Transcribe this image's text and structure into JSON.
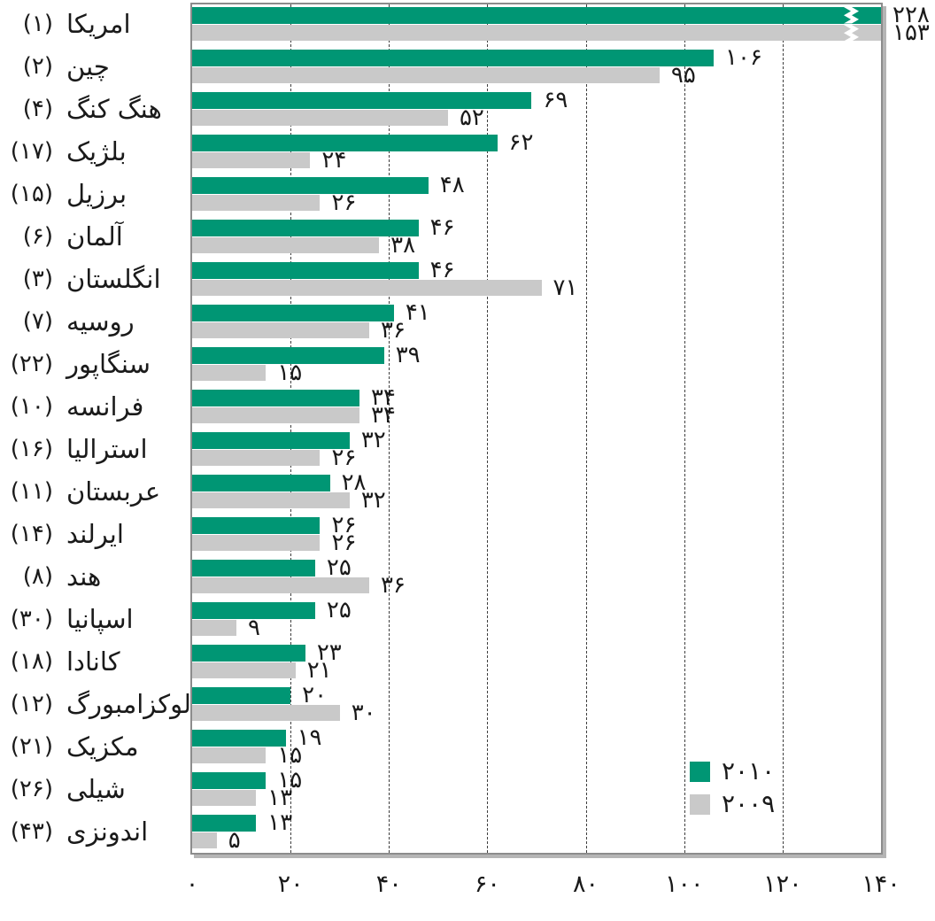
{
  "chart_data": {
    "type": "bar",
    "orientation": "horizontal",
    "xlim": [
      0,
      140
    ],
    "grid": {
      "show": true,
      "interval": 20,
      "style": "dashed"
    },
    "x_axis": {
      "tick_values": [
        0,
        20,
        40,
        60,
        80,
        100,
        120,
        140
      ],
      "tick_labels": [
        "۰",
        "۲۰",
        "۴۰",
        "۶۰",
        "۸۰",
        "۱۰۰",
        "۱۲۰",
        "۱۴۰"
      ]
    },
    "series": [
      {
        "name": "۲۰۱۰",
        "year": 2010,
        "color": "#009674"
      },
      {
        "name": "۲۰۰۹",
        "year": 2009,
        "color": "#c9c9c9"
      }
    ],
    "legend": {
      "position": "bottom-right",
      "labels": [
        "۲۰۱۰",
        "۲۰۰۹"
      ]
    },
    "rows": [
      {
        "country": "امریکا",
        "rank_label": "(۱)",
        "rank": 1,
        "values": [
          228,
          153
        ],
        "value_labels": [
          "۲۲۸",
          "۱۵۳"
        ],
        "clipped": true
      },
      {
        "country": "چین",
        "rank_label": "(۲)",
        "rank": 2,
        "values": [
          106,
          95
        ],
        "value_labels": [
          "۱۰۶",
          "۹۵"
        ],
        "clipped": false
      },
      {
        "country": "هنگ کنگ",
        "rank_label": "(۴)",
        "rank": 4,
        "values": [
          69,
          52
        ],
        "value_labels": [
          "۶۹",
          "۵۲"
        ],
        "clipped": false
      },
      {
        "country": "بلژیک",
        "rank_label": "(۱۷)",
        "rank": 17,
        "values": [
          62,
          24
        ],
        "value_labels": [
          "۶۲",
          "۲۴"
        ],
        "clipped": false
      },
      {
        "country": "برزیل",
        "rank_label": "(۱۵)",
        "rank": 15,
        "values": [
          48,
          26
        ],
        "value_labels": [
          "۴۸",
          "۲۶"
        ],
        "clipped": false
      },
      {
        "country": "آلمان",
        "rank_label": "(۶)",
        "rank": 6,
        "values": [
          46,
          38
        ],
        "value_labels": [
          "۴۶",
          "۳۸"
        ],
        "clipped": false
      },
      {
        "country": "انگلستان",
        "rank_label": "(۳)",
        "rank": 3,
        "values": [
          46,
          71
        ],
        "value_labels": [
          "۴۶",
          "۷۱"
        ],
        "clipped": false
      },
      {
        "country": "روسیه",
        "rank_label": "(۷)",
        "rank": 7,
        "values": [
          41,
          36
        ],
        "value_labels": [
          "۴۱",
          "۳۶"
        ],
        "clipped": false
      },
      {
        "country": "سنگاپور",
        "rank_label": "(۲۲)",
        "rank": 22,
        "values": [
          39,
          15
        ],
        "value_labels": [
          "۳۹",
          "۱۵"
        ],
        "clipped": false
      },
      {
        "country": "فرانسه",
        "rank_label": "(۱۰)",
        "rank": 10,
        "values": [
          34,
          34
        ],
        "value_labels": [
          "۳۴",
          "۳۴"
        ],
        "clipped": false
      },
      {
        "country": "استرالیا",
        "rank_label": "(۱۶)",
        "rank": 16,
        "values": [
          32,
          26
        ],
        "value_labels": [
          "۳۲",
          "۲۶"
        ],
        "clipped": false
      },
      {
        "country": "عربستان",
        "rank_label": "(۱۱)",
        "rank": 11,
        "values": [
          28,
          32
        ],
        "value_labels": [
          "۲۸",
          "۳۲"
        ],
        "clipped": false
      },
      {
        "country": "ایرلند",
        "rank_label": "(۱۴)",
        "rank": 14,
        "values": [
          26,
          26
        ],
        "value_labels": [
          "۲۶",
          "۲۶"
        ],
        "clipped": false
      },
      {
        "country": "هند",
        "rank_label": "(۸)",
        "rank": 8,
        "values": [
          25,
          36
        ],
        "value_labels": [
          "۲۵",
          "۳۶"
        ],
        "clipped": false
      },
      {
        "country": "اسپانیا",
        "rank_label": "(۳۰)",
        "rank": 30,
        "values": [
          25,
          9
        ],
        "value_labels": [
          "۲۵",
          "۹"
        ],
        "clipped": false
      },
      {
        "country": "کانادا",
        "rank_label": "(۱۸)",
        "rank": 18,
        "values": [
          23,
          21
        ],
        "value_labels": [
          "۲۳",
          "۲۱"
        ],
        "clipped": false
      },
      {
        "country": "لوکزامبورگ",
        "rank_label": "(۱۲)",
        "rank": 12,
        "values": [
          20,
          30
        ],
        "value_labels": [
          "۲۰",
          "۳۰"
        ],
        "clipped": false
      },
      {
        "country": "مکزیک",
        "rank_label": "(۲۱)",
        "rank": 21,
        "values": [
          19,
          15
        ],
        "value_labels": [
          "۱۹",
          "۱۵"
        ],
        "clipped": false
      },
      {
        "country": "شیلی",
        "rank_label": "(۲۶)",
        "rank": 26,
        "values": [
          15,
          13
        ],
        "value_labels": [
          "۱۵",
          "۱۳"
        ],
        "clipped": false
      },
      {
        "country": "اندونزی",
        "rank_label": "(۴۳)",
        "rank": 43,
        "values": [
          13,
          5
        ],
        "value_labels": [
          "۱۳",
          "۵"
        ],
        "clipped": false
      }
    ]
  },
  "colors": {
    "bar_2010": "#009674",
    "bar_2009": "#c9c9c9",
    "text": "#1a1a1a",
    "gridline": "#3f3f3f",
    "frame": "#8c8c8c",
    "frame_shadow": "#b5b5b5",
    "break_mark": "#ffffff"
  }
}
